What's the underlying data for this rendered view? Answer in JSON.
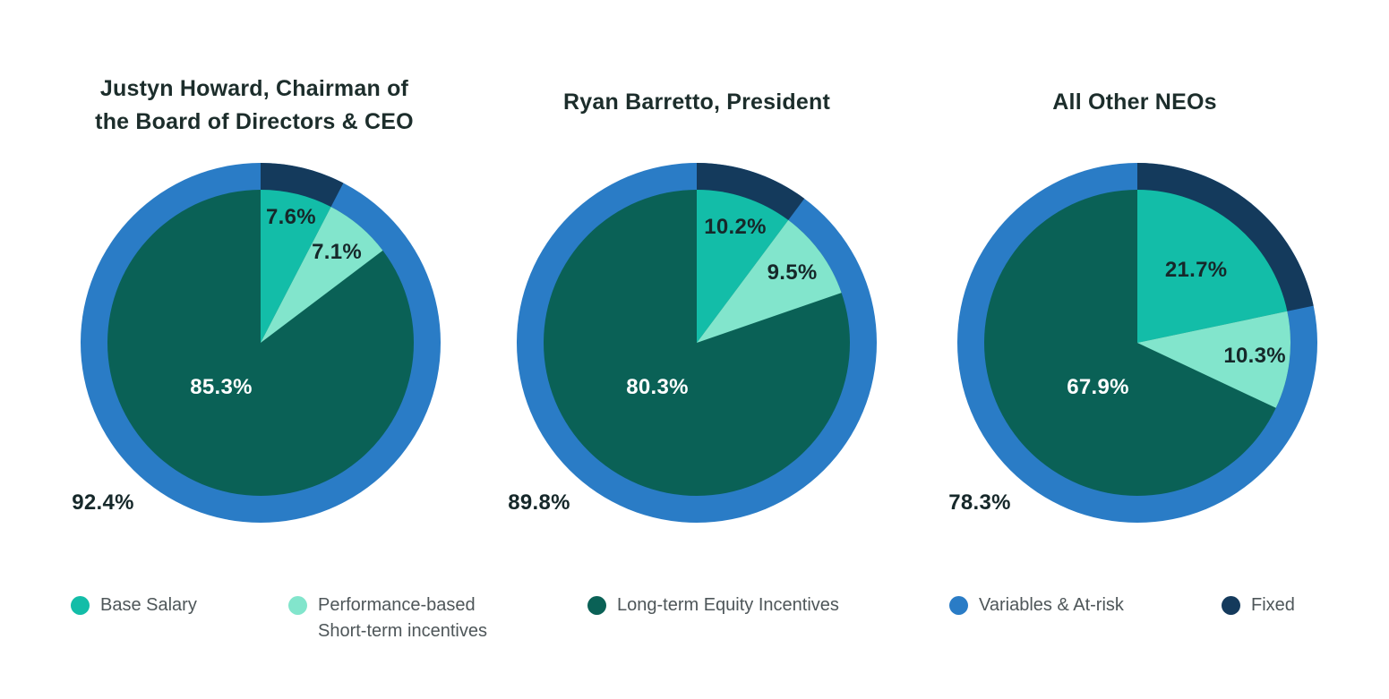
{
  "colors": {
    "base_salary": "#13BDA8",
    "short_term_incentives": "#82E5CC",
    "long_term_equity": "#0A6156",
    "variables_at_risk": "#2A7CC6",
    "fixed": "#143A5C",
    "title_text": "#1C2D2B",
    "label_text_dark": "#16282A",
    "label_text_light": "#FFFFFF",
    "legend_text": "#4E5659"
  },
  "chart_data": [
    {
      "type": "pie",
      "title": "Justyn Howard, Chairman of\nthe Board of Directors & CEO",
      "slices": [
        {
          "name": "Base Salary",
          "value": 7.6,
          "label": "7.6%"
        },
        {
          "name": "Performance-based Short-term incentives",
          "value": 7.1,
          "label": "7.1%"
        },
        {
          "name": "Long-term Equity Incentives",
          "value": 85.3,
          "label": "85.3%"
        }
      ],
      "ring": [
        {
          "name": "Variables & At-risk",
          "value": 92.4,
          "label": "92.4%"
        },
        {
          "name": "Fixed",
          "value": 7.6
        }
      ]
    },
    {
      "type": "pie",
      "title": "Ryan Barretto, President",
      "slices": [
        {
          "name": "Base Salary",
          "value": 10.2,
          "label": "10.2%"
        },
        {
          "name": "Performance-based Short-term incentives",
          "value": 9.5,
          "label": "9.5%"
        },
        {
          "name": "Long-term Equity Incentives",
          "value": 80.3,
          "label": "80.3%"
        }
      ],
      "ring": [
        {
          "name": "Variables & At-risk",
          "value": 89.8,
          "label": "89.8%"
        },
        {
          "name": "Fixed",
          "value": 10.2
        }
      ]
    },
    {
      "type": "pie",
      "title": "All Other NEOs",
      "slices": [
        {
          "name": "Base Salary",
          "value": 21.7,
          "label": "21.7%"
        },
        {
          "name": "Performance-based Short-term incentives",
          "value": 10.3,
          "label": "10.3%"
        },
        {
          "name": "Long-term Equity Incentives",
          "value": 67.9,
          "label": "67.9%"
        }
      ],
      "ring": [
        {
          "name": "Variables & At-risk",
          "value": 78.3,
          "label": "78.3%"
        },
        {
          "name": "Fixed",
          "value": 21.7
        }
      ]
    }
  ],
  "legend": [
    {
      "name": "Base Salary",
      "color_key": "base_salary"
    },
    {
      "name": "Performance-based\nShort-term incentives",
      "color_key": "short_term_incentives"
    },
    {
      "name": "Long-term Equity Incentives",
      "color_key": "long_term_equity"
    },
    {
      "name": "Variables & At-risk",
      "color_key": "variables_at_risk"
    },
    {
      "name": "Fixed",
      "color_key": "fixed"
    }
  ]
}
